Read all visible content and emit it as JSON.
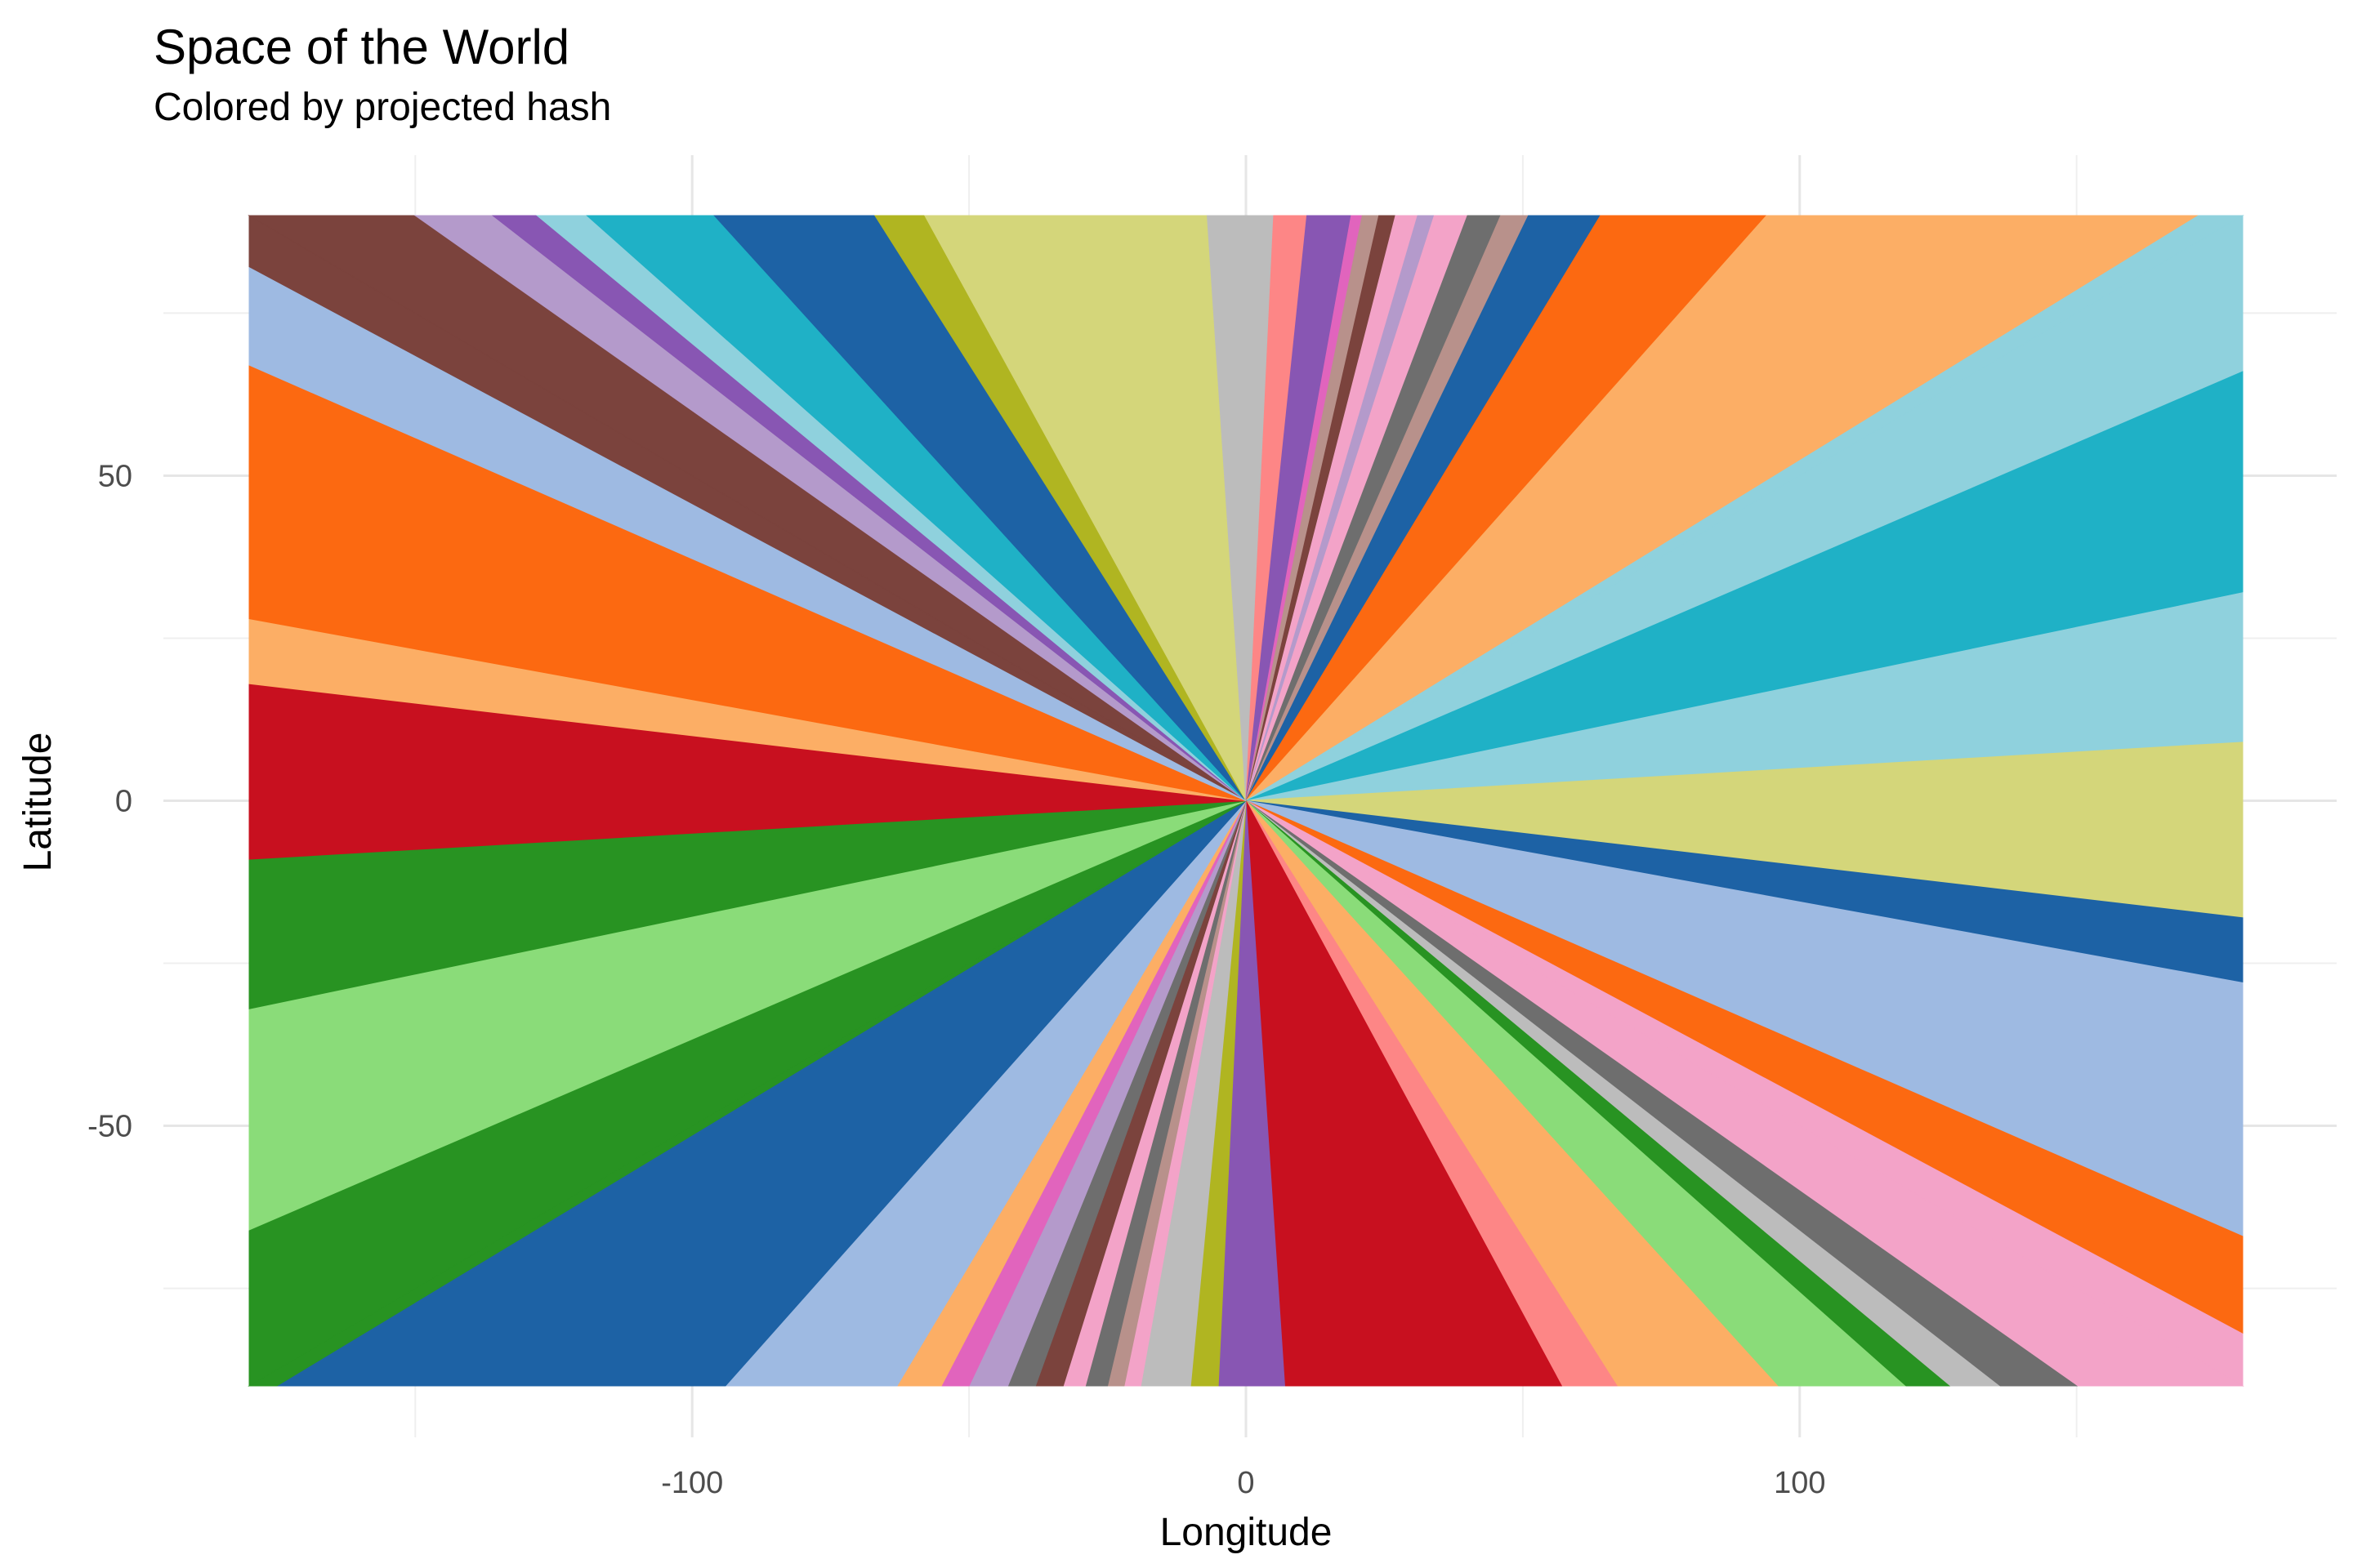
{
  "chart_data": {
    "type": "heatmap",
    "title": "Space of the World",
    "subtitle": "Colored by projected hash",
    "xlabel": "Longitude",
    "ylabel": "Latitude",
    "xlim": [
      -180,
      180
    ],
    "ylim": [
      -90,
      90
    ],
    "x_ticks": [
      -100,
      0,
      100
    ],
    "x_tick_labels": [
      "-100",
      "0",
      "100"
    ],
    "y_ticks": [
      50,
      0,
      -50
    ],
    "y_tick_labels": [
      "50",
      "0",
      "-50"
    ],
    "grid": true,
    "legend": "none",
    "center": [
      0,
      0
    ],
    "sectors": [
      {
        "from": [
          -180,
          82
        ],
        "to": [
          -180,
          90
        ],
        "color": "#7B433D"
      },
      {
        "from": [
          -180,
          90
        ],
        "to": [
          -150,
          90
        ],
        "color": "#7B433D"
      },
      {
        "from": [
          -150,
          90
        ],
        "to": [
          -136,
          90
        ],
        "color": "#B49ACB"
      },
      {
        "from": [
          -136,
          90
        ],
        "to": [
          -128,
          90
        ],
        "color": "#8856B3"
      },
      {
        "from": [
          -128,
          90
        ],
        "to": [
          -119,
          90
        ],
        "color": "#8FD1DD"
      },
      {
        "from": [
          -119,
          90
        ],
        "to": [
          -96,
          90
        ],
        "color": "#1FB1C6"
      },
      {
        "from": [
          -96,
          90
        ],
        "to": [
          -67,
          90
        ],
        "color": "#1D62A5"
      },
      {
        "from": [
          -67,
          90
        ],
        "to": [
          -58,
          90
        ],
        "color": "#B0B521"
      },
      {
        "from": [
          -58,
          90
        ],
        "to": [
          -7,
          90
        ],
        "color": "#D4D67A"
      },
      {
        "from": [
          -7,
          90
        ],
        "to": [
          5,
          90
        ],
        "color": "#BCBCBC"
      },
      {
        "from": [
          5,
          90
        ],
        "to": [
          11,
          90
        ],
        "color": "#FD8686"
      },
      {
        "from": [
          11,
          90
        ],
        "to": [
          19,
          90
        ],
        "color": "#8856B3"
      },
      {
        "from": [
          19,
          90
        ],
        "to": [
          21,
          90
        ],
        "color": "#E164BD"
      },
      {
        "from": [
          21,
          90
        ],
        "to": [
          24,
          90
        ],
        "color": "#B8918B"
      },
      {
        "from": [
          24,
          90
        ],
        "to": [
          27,
          90
        ],
        "color": "#7B433D"
      },
      {
        "from": [
          27,
          90
        ],
        "to": [
          31,
          90
        ],
        "color": "#F3A3C8"
      },
      {
        "from": [
          31,
          90
        ],
        "to": [
          34,
          90
        ],
        "color": "#B49ACB"
      },
      {
        "from": [
          34,
          90
        ],
        "to": [
          40,
          90
        ],
        "color": "#F3A3C8"
      },
      {
        "from": [
          40,
          90
        ],
        "to": [
          46,
          90
        ],
        "color": "#6E6E6E"
      },
      {
        "from": [
          46,
          90
        ],
        "to": [
          51,
          90
        ],
        "color": "#B8918B"
      },
      {
        "from": [
          51,
          90
        ],
        "to": [
          64,
          90
        ],
        "color": "#1D62A5"
      },
      {
        "from": [
          64,
          90
        ],
        "to": [
          94,
          90
        ],
        "color": "#FC6911"
      },
      {
        "from": [
          94,
          90
        ],
        "to": [
          172,
          90
        ],
        "color": "#FCAE65"
      },
      {
        "from": [
          172,
          90
        ],
        "to": [
          180,
          90
        ],
        "color": "#8FD1DD"
      },
      {
        "from": [
          180,
          90
        ],
        "to": [
          180,
          66
        ],
        "color": "#8FD1DD"
      },
      {
        "from": [
          180,
          66
        ],
        "to": [
          180,
          32
        ],
        "color": "#1FB1C6"
      },
      {
        "from": [
          180,
          32
        ],
        "to": [
          180,
          9
        ],
        "color": "#8FD1DD"
      },
      {
        "from": [
          180,
          9
        ],
        "to": [
          180,
          -18
        ],
        "color": "#D4D67A"
      },
      {
        "from": [
          180,
          -18
        ],
        "to": [
          180,
          -28
        ],
        "color": "#1D62A5"
      },
      {
        "from": [
          180,
          -28
        ],
        "to": [
          180,
          -67
        ],
        "color": "#9EBAE2"
      },
      {
        "from": [
          180,
          -67
        ],
        "to": [
          180,
          -82
        ],
        "color": "#FC6911"
      },
      {
        "from": [
          180,
          -82
        ],
        "to": [
          180,
          -90
        ],
        "color": "#F3A3C8"
      },
      {
        "from": [
          180,
          -90
        ],
        "to": [
          150,
          -90
        ],
        "color": "#F3A3C8"
      },
      {
        "from": [
          150,
          -90
        ],
        "to": [
          136,
          -90
        ],
        "color": "#6E6E6E"
      },
      {
        "from": [
          136,
          -90
        ],
        "to": [
          127,
          -90
        ],
        "color": "#BCBCBC"
      },
      {
        "from": [
          127,
          -90
        ],
        "to": [
          119,
          -90
        ],
        "color": "#289322"
      },
      {
        "from": [
          119,
          -90
        ],
        "to": [
          96,
          -90
        ],
        "color": "#8ADC79"
      },
      {
        "from": [
          96,
          -90
        ],
        "to": [
          67,
          -90
        ],
        "color": "#FCAE65"
      },
      {
        "from": [
          67,
          -90
        ],
        "to": [
          57,
          -90
        ],
        "color": "#FD8686"
      },
      {
        "from": [
          57,
          -90
        ],
        "to": [
          7,
          -90
        ],
        "color": "#C8101F"
      },
      {
        "from": [
          7,
          -90
        ],
        "to": [
          -5,
          -90
        ],
        "color": "#8856B3"
      },
      {
        "from": [
          -5,
          -90
        ],
        "to": [
          -10,
          -90
        ],
        "color": "#B0B521"
      },
      {
        "from": [
          -10,
          -90
        ],
        "to": [
          -19,
          -90
        ],
        "color": "#BCBCBC"
      },
      {
        "from": [
          -19,
          -90
        ],
        "to": [
          -22,
          -90
        ],
        "color": "#F3A3C8"
      },
      {
        "from": [
          -22,
          -90
        ],
        "to": [
          -25,
          -90
        ],
        "color": "#B8918B"
      },
      {
        "from": [
          -25,
          -90
        ],
        "to": [
          -29,
          -90
        ],
        "color": "#6E6E6E"
      },
      {
        "from": [
          -29,
          -90
        ],
        "to": [
          -33,
          -90
        ],
        "color": "#F3A3C8"
      },
      {
        "from": [
          -33,
          -90
        ],
        "to": [
          -38,
          -90
        ],
        "color": "#7B433D"
      },
      {
        "from": [
          -38,
          -90
        ],
        "to": [
          -43,
          -90
        ],
        "color": "#6E6E6E"
      },
      {
        "from": [
          -43,
          -90
        ],
        "to": [
          -50,
          -90
        ],
        "color": "#B49ACB"
      },
      {
        "from": [
          -50,
          -90
        ],
        "to": [
          -55,
          -90
        ],
        "color": "#E164BD"
      },
      {
        "from": [
          -55,
          -90
        ],
        "to": [
          -63,
          -90
        ],
        "color": "#FCAE65"
      },
      {
        "from": [
          -63,
          -90
        ],
        "to": [
          -94,
          -90
        ],
        "color": "#9EBAE2"
      },
      {
        "from": [
          -94,
          -90
        ],
        "to": [
          -175,
          -90
        ],
        "color": "#1D62A5"
      },
      {
        "from": [
          -175,
          -90
        ],
        "to": [
          -180,
          -90
        ],
        "color": "#289322"
      },
      {
        "from": [
          -180,
          -90
        ],
        "to": [
          -180,
          -66
        ],
        "color": "#289322"
      },
      {
        "from": [
          -180,
          -66
        ],
        "to": [
          -180,
          -32
        ],
        "color": "#8ADC79"
      },
      {
        "from": [
          -180,
          -32
        ],
        "to": [
          -180,
          -9
        ],
        "color": "#289322"
      },
      {
        "from": [
          -180,
          -9
        ],
        "to": [
          -180,
          18
        ],
        "color": "#C8101F"
      },
      {
        "from": [
          -180,
          18
        ],
        "to": [
          -180,
          28
        ],
        "color": "#FCAE65"
      },
      {
        "from": [
          -180,
          28
        ],
        "to": [
          -180,
          67
        ],
        "color": "#FC6911"
      },
      {
        "from": [
          -180,
          67
        ],
        "to": [
          -180,
          82
        ],
        "color": "#9EBAE2"
      }
    ]
  }
}
